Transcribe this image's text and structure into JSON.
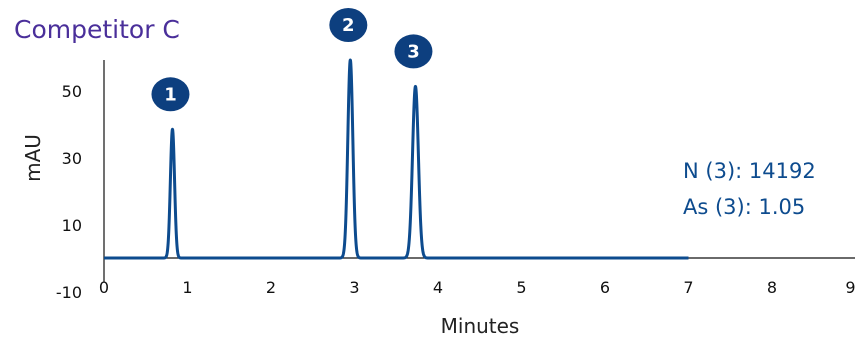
{
  "chart_data": {
    "type": "line",
    "title": "Competitor C",
    "xlabel": "Minutes",
    "ylabel": "mAU",
    "xlim": [
      0,
      9
    ],
    "ylim": [
      -10,
      60
    ],
    "x_ticks": [
      "0",
      "1",
      "2",
      "3",
      "4",
      "5",
      "6",
      "7",
      "8",
      "9"
    ],
    "y_ticks": [
      "-10",
      "10",
      "30",
      "50"
    ],
    "trace_end_x": 7,
    "baseline_y": 0,
    "peaks": [
      {
        "label": "1",
        "retention_time": 0.82,
        "height": 39,
        "width": 0.025
      },
      {
        "label": "2",
        "retention_time": 2.95,
        "height": 60,
        "width": 0.03
      },
      {
        "label": "3",
        "retention_time": 3.73,
        "height": 52,
        "width": 0.035
      }
    ],
    "annotations": [
      "N (3): 14192",
      "As (3): 1.05"
    ],
    "colors": {
      "trace": "#0d4b8e",
      "badge": "#0d3f7f",
      "annotation": "#0d4b8e",
      "title": "#4a2f9a"
    },
    "grid": false
  }
}
